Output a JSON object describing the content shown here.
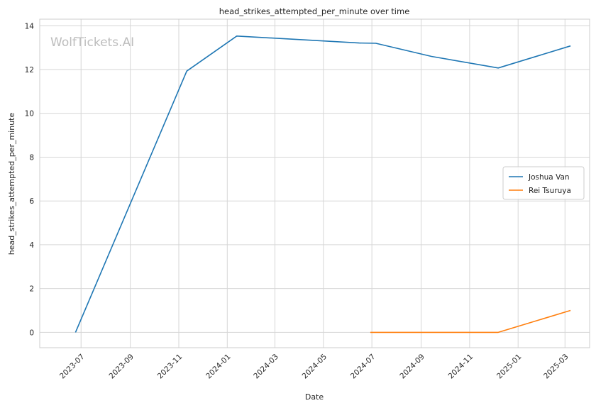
{
  "watermark": "WolfTickets.AI",
  "chart_data": {
    "type": "line",
    "title": "head_strikes_attempted_per_minute over time",
    "xlabel": "Date",
    "ylabel": "head_strikes_attempted_per_minute",
    "xlim": [
      "2023-05-10",
      "2025-04-01"
    ],
    "ylim": [
      -0.7,
      14.3
    ],
    "x_ticks": [
      "2023-07-01",
      "2023-09-01",
      "2023-11-01",
      "2024-01-01",
      "2024-03-01",
      "2024-05-01",
      "2024-07-01",
      "2024-09-01",
      "2024-11-01",
      "2025-01-01",
      "2025-03-01"
    ],
    "x_tick_labels": [
      "2023-07",
      "2023-09",
      "2023-11",
      "2024-01",
      "2024-03",
      "2024-05",
      "2024-07",
      "2024-09",
      "2024-11",
      "2025-01",
      "2025-03"
    ],
    "y_ticks": [
      0,
      2,
      4,
      6,
      8,
      10,
      12,
      14
    ],
    "grid": true,
    "legend_position": "center-right",
    "series": [
      {
        "name": "Joshua Van",
        "color": "#1f77b4",
        "x": [
          "2023-06-24",
          "2023-11-11",
          "2024-01-13",
          "2024-06-15",
          "2024-07-06",
          "2024-09-14",
          "2024-12-07",
          "2025-03-08"
        ],
        "y": [
          0.0,
          11.93,
          13.53,
          13.21,
          13.2,
          12.6,
          12.07,
          13.08
        ]
      },
      {
        "name": "Rei Tsuruya",
        "color": "#ff7f0e",
        "x": [
          "2024-06-29",
          "2024-12-07",
          "2025-03-08"
        ],
        "y": [
          0.0,
          0.0,
          1.0
        ]
      }
    ]
  }
}
